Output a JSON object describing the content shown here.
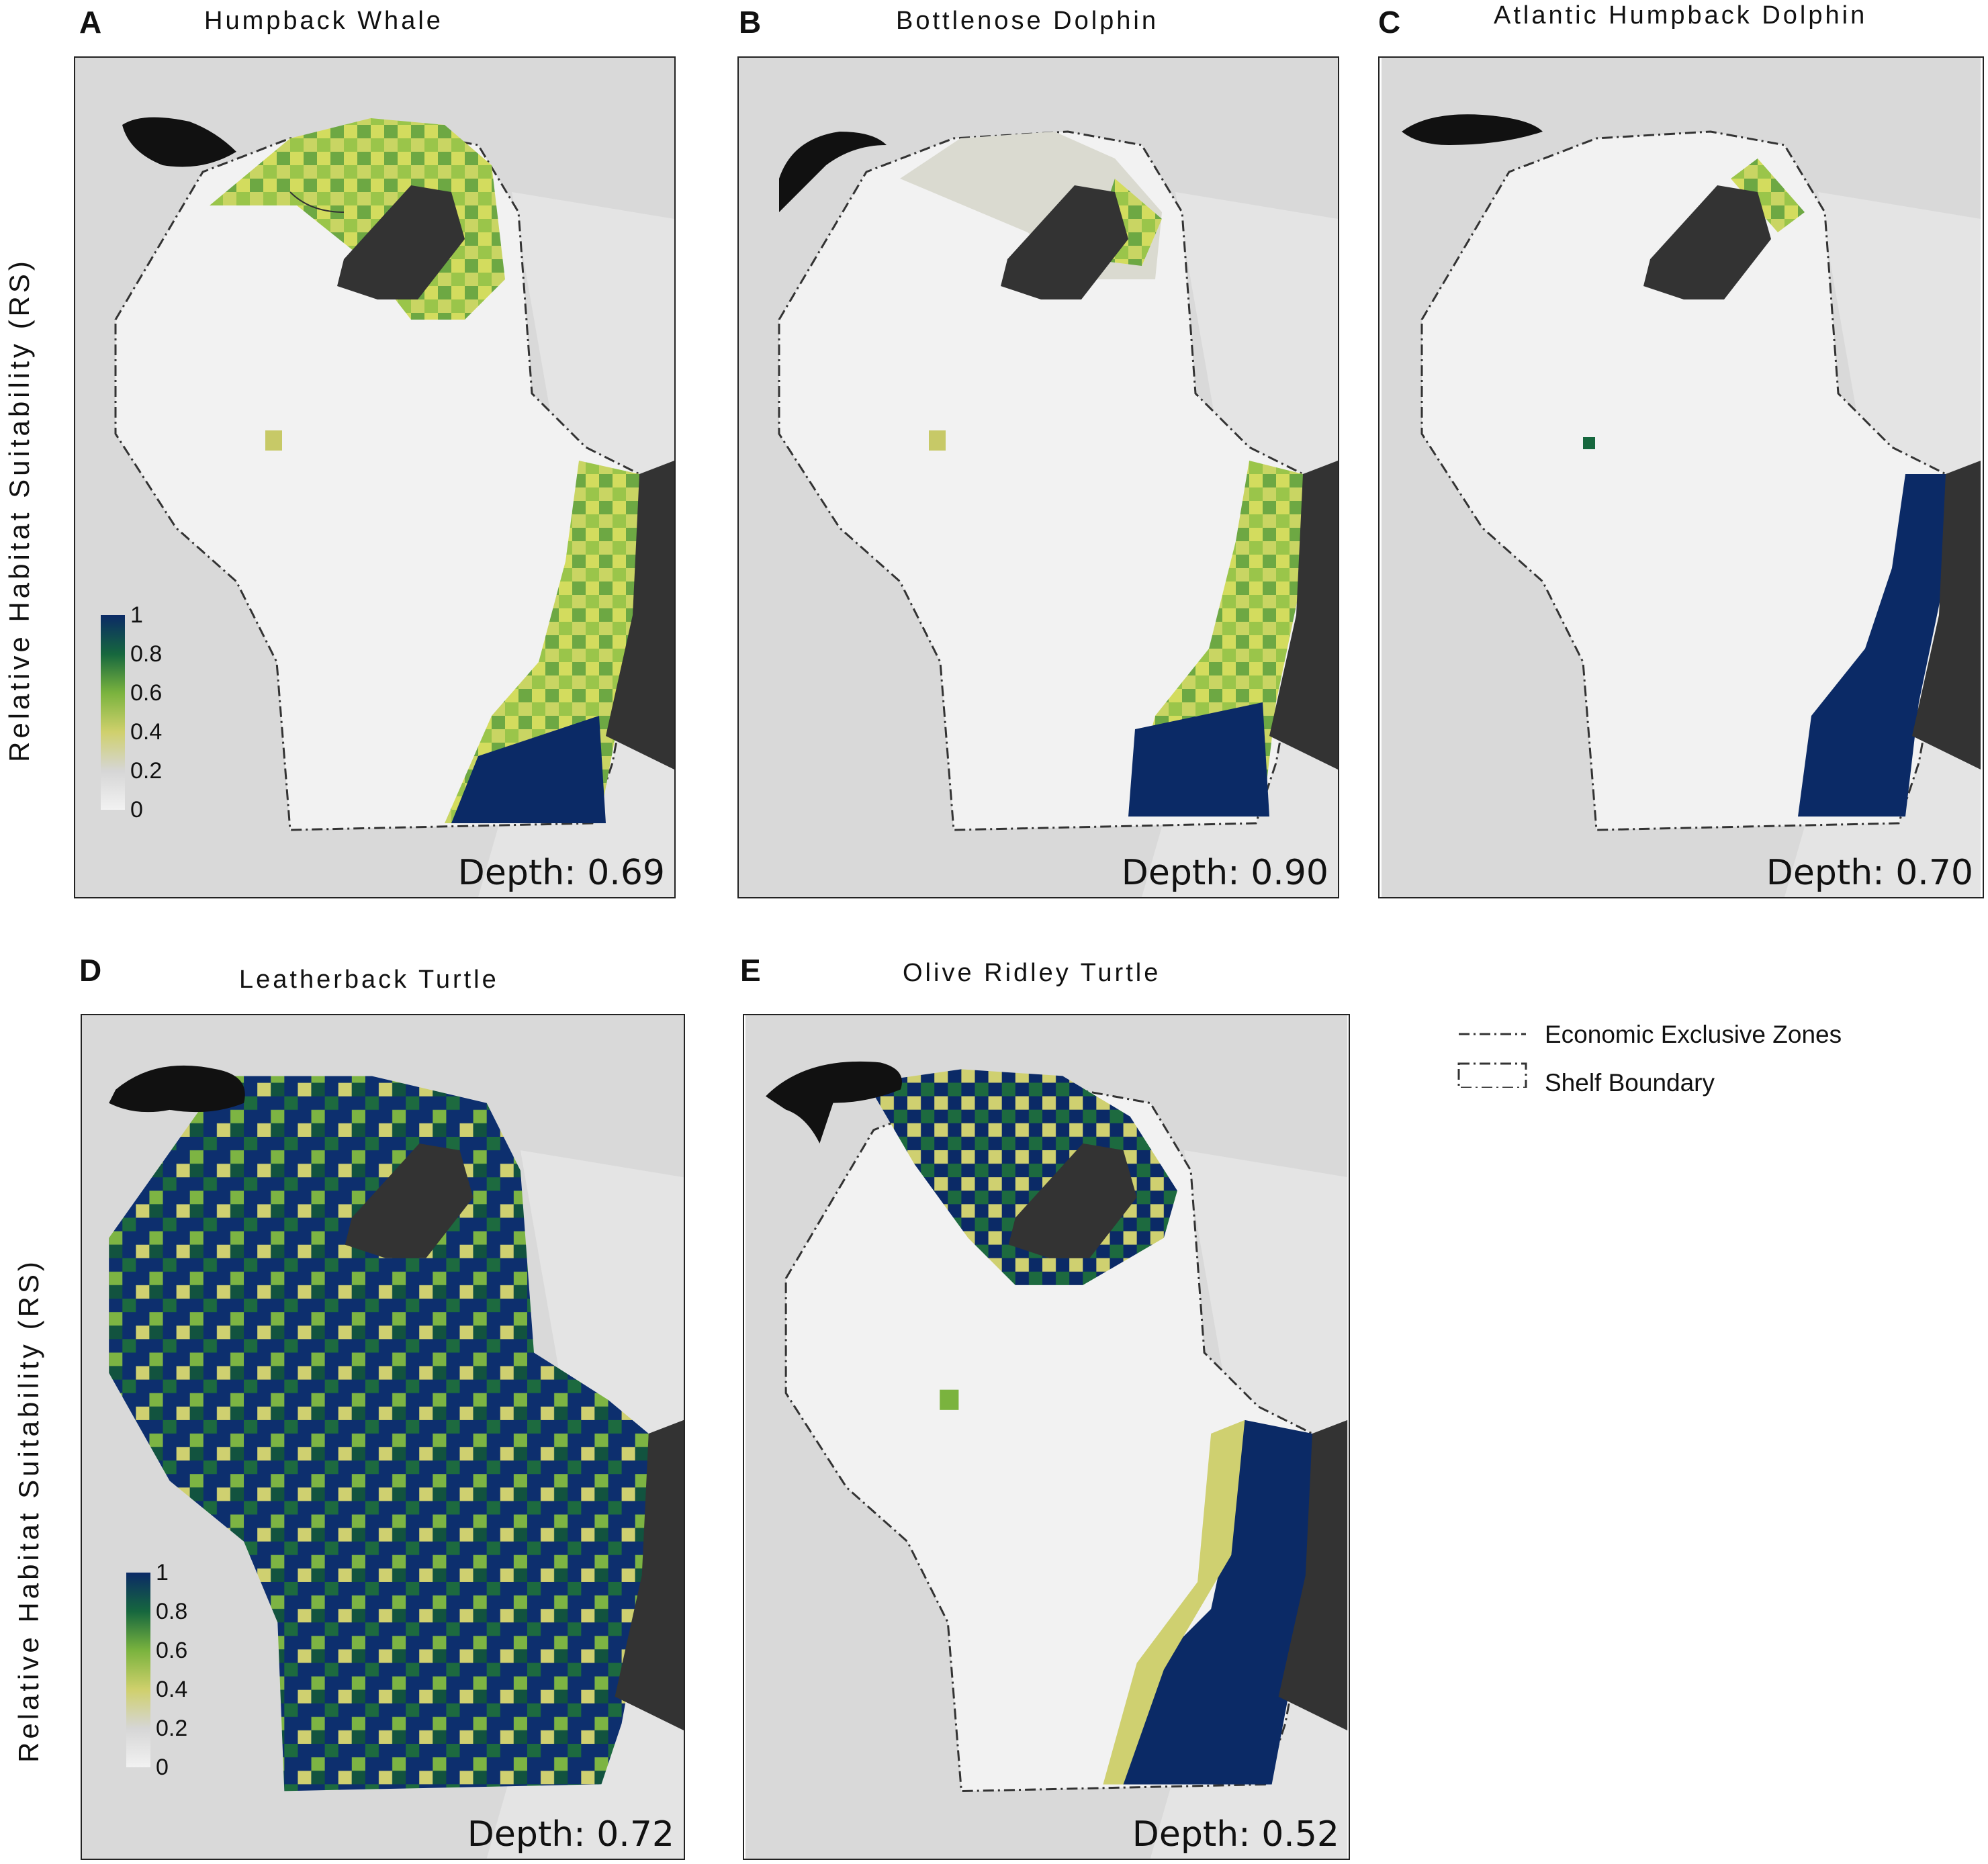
{
  "y_axis_label": "Relative Habitat Suitability (RS)",
  "colorbar": {
    "ticks": [
      "1",
      "0.8",
      "0.6",
      "0.4",
      "0.2",
      "0"
    ],
    "colors": [
      "#f2f2f2",
      "#d6d6d6",
      "#cfd06c",
      "#7ab33e",
      "#16673e",
      "#0b2a66"
    ]
  },
  "panels": [
    {
      "letter": "A",
      "title": "Humpback Whale",
      "depth": "Depth: 0.69",
      "icon": "humpback-whale-silhouette-icon"
    },
    {
      "letter": "B",
      "title": "Bottlenose Dolphin",
      "depth": "Depth: 0.90",
      "icon": "bottlenose-dolphin-silhouette-icon"
    },
    {
      "letter": "C",
      "title": "Atlantic Humpback Dolphin",
      "depth": "Depth: 0.70",
      "icon": "humpback-dolphin-silhouette-icon"
    },
    {
      "letter": "D",
      "title": "Leatherback Turtle",
      "depth": "Depth: 0.72",
      "icon": "leatherback-turtle-silhouette-icon"
    },
    {
      "letter": "E",
      "title": "Olive Ridley Turtle",
      "depth": "Depth: 0.52",
      "icon": "olive-ridley-turtle-silhouette-icon"
    }
  ],
  "legend": {
    "eez": "Economic Exclusive Zones",
    "shelf": "Shelf Boundary"
  }
}
